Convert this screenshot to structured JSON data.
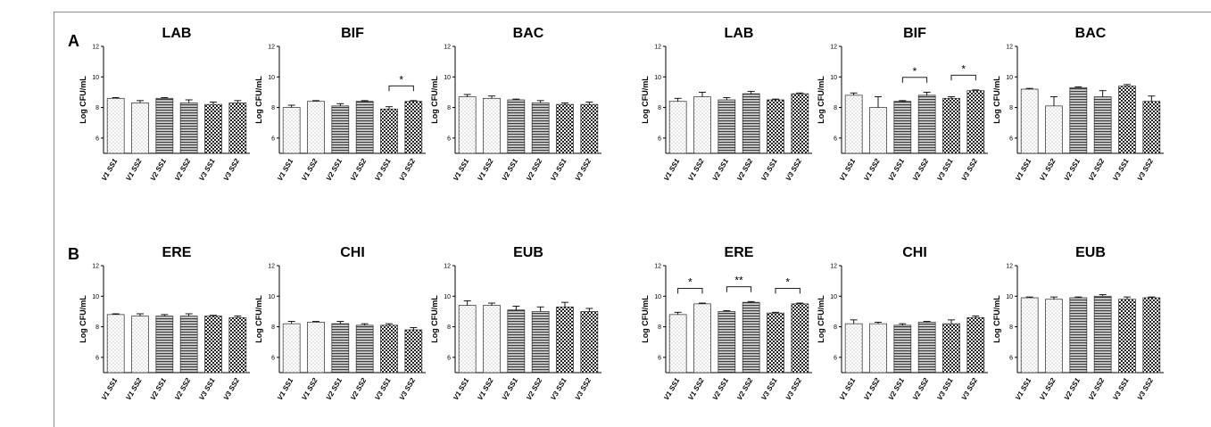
{
  "panels": {
    "a": "A",
    "b": "B"
  },
  "colors": {
    "bar_stroke": "#2a2a2a",
    "axis": "#000000",
    "frame": "#8a8a8a"
  },
  "chart_data": [
    {
      "type": "bar",
      "title": "LAB",
      "ylabel": "Log CFU/mL",
      "ylim": [
        5,
        12
      ],
      "yticks": [
        6,
        8,
        10,
        12
      ],
      "categories": [
        "V1 SS1",
        "V1 SS2",
        "V2 SS1",
        "V2 SS2",
        "V3 SS1",
        "V3 SS2"
      ],
      "values": [
        8.6,
        8.3,
        8.6,
        8.3,
        8.2,
        8.3
      ],
      "errors": [
        0.05,
        0.15,
        0.05,
        0.2,
        0.15,
        0.15
      ],
      "sig": []
    },
    {
      "type": "bar",
      "title": "BIF",
      "ylabel": "Log CFU/mL",
      "ylim": [
        5,
        12
      ],
      "yticks": [
        6,
        8,
        10,
        12
      ],
      "categories": [
        "V1 SS1",
        "V1 SS2",
        "V2 SS1",
        "V2 SS2",
        "V3 SS1",
        "V3 SS2"
      ],
      "values": [
        8.0,
        8.4,
        8.1,
        8.4,
        7.9,
        8.4
      ],
      "errors": [
        0.15,
        0.05,
        0.15,
        0.05,
        0.15,
        0.05
      ],
      "sig": [
        {
          "from": 4,
          "to": 5,
          "label": "*"
        }
      ]
    },
    {
      "type": "bar",
      "title": "BAC",
      "ylabel": "Log CFU/mL",
      "ylim": [
        5,
        12
      ],
      "yticks": [
        6,
        8,
        10,
        12
      ],
      "categories": [
        "V1 SS1",
        "V1 SS2",
        "V2 SS1",
        "V2 SS2",
        "V3 SS1",
        "V3 SS2"
      ],
      "values": [
        8.7,
        8.6,
        8.5,
        8.3,
        8.2,
        8.2
      ],
      "errors": [
        0.15,
        0.15,
        0.05,
        0.15,
        0.1,
        0.15
      ],
      "sig": []
    },
    {
      "type": "bar",
      "title": "LAB",
      "ylabel": "Log CFU/mL",
      "ylim": [
        5,
        12
      ],
      "yticks": [
        6,
        8,
        10,
        12
      ],
      "categories": [
        "V1 SS1",
        "V1 SS2",
        "V2 SS1",
        "V2 SS2",
        "V3 SS1",
        "V3 SS2"
      ],
      "values": [
        8.4,
        8.7,
        8.5,
        8.9,
        8.5,
        8.9
      ],
      "errors": [
        0.2,
        0.3,
        0.15,
        0.15,
        0.05,
        0.05
      ],
      "sig": []
    },
    {
      "type": "bar",
      "title": "BIF",
      "ylabel": "Log CFU/mL",
      "ylim": [
        5,
        12
      ],
      "yticks": [
        6,
        8,
        10,
        12
      ],
      "categories": [
        "V1 SS1",
        "V1 SS2",
        "V2 SS1",
        "V2 SS2",
        "V3 SS1",
        "V3 SS2"
      ],
      "values": [
        8.8,
        8.0,
        8.4,
        8.8,
        8.6,
        9.1
      ],
      "errors": [
        0.15,
        0.7,
        0.05,
        0.2,
        0.1,
        0.05
      ],
      "sig": [
        {
          "from": 2,
          "to": 3,
          "label": "*"
        },
        {
          "from": 4,
          "to": 5,
          "label": "*"
        }
      ]
    },
    {
      "type": "bar",
      "title": "BAC",
      "ylabel": "Log CFU/mL",
      "ylim": [
        5,
        12
      ],
      "yticks": [
        6,
        8,
        10,
        12
      ],
      "categories": [
        "V1 SS1",
        "V1 SS2",
        "V2 SS1",
        "V2 SS2",
        "V3 SS1",
        "V3 SS2"
      ],
      "values": [
        9.2,
        8.1,
        9.3,
        8.7,
        9.4,
        8.4
      ],
      "errors": [
        0.05,
        0.6,
        0.05,
        0.4,
        0.1,
        0.35
      ],
      "sig": []
    },
    {
      "type": "bar",
      "title": "ERE",
      "ylabel": "Log CFU/mL",
      "ylim": [
        5,
        12
      ],
      "yticks": [
        6,
        8,
        10,
        12
      ],
      "categories": [
        "V1 SS1",
        "V1 SS2",
        "V2 SS1",
        "V2 SS2",
        "V3 SS1",
        "V3 SS2"
      ],
      "values": [
        8.8,
        8.7,
        8.7,
        8.7,
        8.7,
        8.6
      ],
      "errors": [
        0.05,
        0.15,
        0.1,
        0.15,
        0.05,
        0.1
      ],
      "sig": []
    },
    {
      "type": "bar",
      "title": "CHI",
      "ylabel": "Log CFU/mL",
      "ylim": [
        5,
        12
      ],
      "yticks": [
        6,
        8,
        10,
        12
      ],
      "categories": [
        "V1 SS1",
        "V1 SS2",
        "V2 SS1",
        "V2 SS2",
        "V3 SS1",
        "V3 SS2"
      ],
      "values": [
        8.2,
        8.3,
        8.2,
        8.1,
        8.1,
        7.8
      ],
      "errors": [
        0.15,
        0.05,
        0.15,
        0.1,
        0.1,
        0.15
      ],
      "sig": []
    },
    {
      "type": "bar",
      "title": "EUB",
      "ylabel": "Log CFU/mL",
      "ylim": [
        5,
        12
      ],
      "yticks": [
        6,
        8,
        10,
        12
      ],
      "categories": [
        "V1 SS1",
        "V1 SS2",
        "V2 SS1",
        "V2 SS2",
        "V3 SS1",
        "V3 SS2"
      ],
      "values": [
        9.4,
        9.4,
        9.1,
        9.0,
        9.3,
        9.0
      ],
      "errors": [
        0.3,
        0.15,
        0.25,
        0.3,
        0.3,
        0.2
      ],
      "sig": []
    },
    {
      "type": "bar",
      "title": "ERE",
      "ylabel": "Log CFU/mL",
      "ylim": [
        5,
        12
      ],
      "yticks": [
        6,
        8,
        10,
        12
      ],
      "categories": [
        "V1 SS1",
        "V1 SS2",
        "V2 SS1",
        "V2 SS2",
        "V3 SS1",
        "V3 SS2"
      ],
      "values": [
        8.8,
        9.5,
        9.0,
        9.6,
        8.9,
        9.5
      ],
      "errors": [
        0.15,
        0.05,
        0.05,
        0.05,
        0.05,
        0.05
      ],
      "sig": [
        {
          "from": 0,
          "to": 1,
          "label": "*"
        },
        {
          "from": 2,
          "to": 3,
          "label": "**"
        },
        {
          "from": 4,
          "to": 5,
          "label": "*"
        }
      ]
    },
    {
      "type": "bar",
      "title": "CHI",
      "ylabel": "Log CFU/mL",
      "ylim": [
        5,
        12
      ],
      "yticks": [
        6,
        8,
        10,
        12
      ],
      "categories": [
        "V1 SS1",
        "V1 SS2",
        "V2 SS1",
        "V2 SS2",
        "V3 SS1",
        "V3 SS2"
      ],
      "values": [
        8.2,
        8.2,
        8.1,
        8.3,
        8.2,
        8.6
      ],
      "errors": [
        0.25,
        0.1,
        0.1,
        0.05,
        0.25,
        0.1
      ],
      "sig": []
    },
    {
      "type": "bar",
      "title": "EUB",
      "ylabel": "Log CFU/mL",
      "ylim": [
        5,
        12
      ],
      "yticks": [
        6,
        8,
        10,
        12
      ],
      "categories": [
        "V1 SS1",
        "V1 SS2",
        "V2 SS1",
        "V2 SS2",
        "V3 SS1",
        "V3 SS2"
      ],
      "values": [
        9.9,
        9.8,
        9.9,
        10.0,
        9.8,
        9.9
      ],
      "errors": [
        0.05,
        0.15,
        0.05,
        0.1,
        0.15,
        0.05
      ],
      "sig": []
    }
  ]
}
